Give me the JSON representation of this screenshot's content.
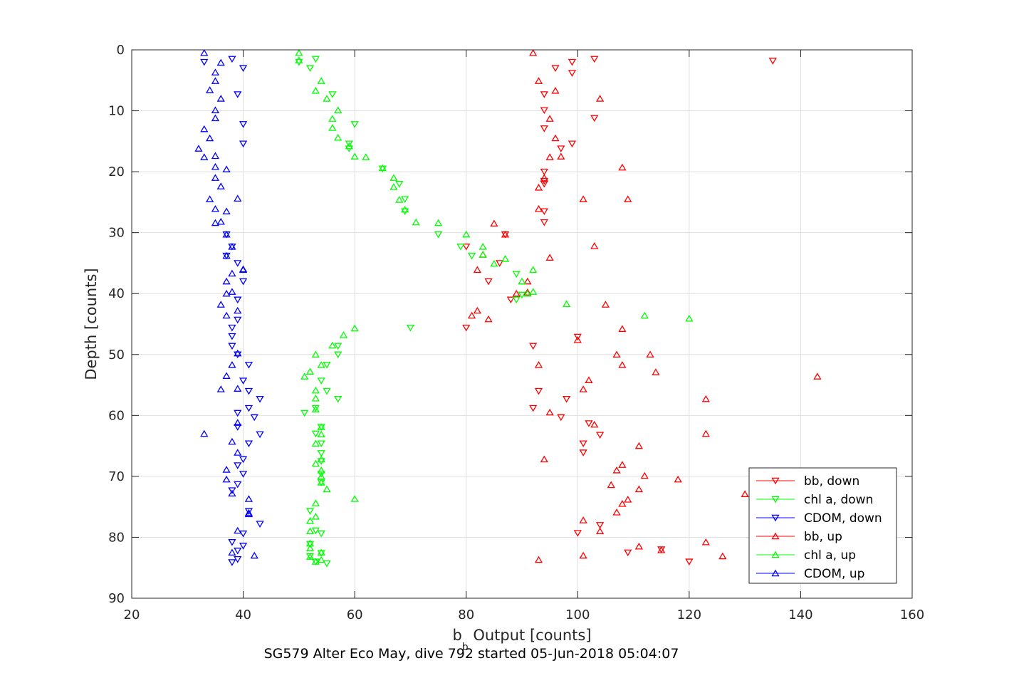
{
  "chart_data": {
    "type": "scatter",
    "title": "",
    "caption": "SG579 Alter Eco May, dive 792 started 05-Jun-2018 05:04:07",
    "xlabel": "b",
    "xlabel_sub": "b",
    "xlabel_rest": " Output [counts]",
    "ylabel": "Depth [counts]",
    "xlim": [
      20,
      160
    ],
    "ylim": [
      0,
      90
    ],
    "y_reversed": true,
    "grid": true,
    "legend_position": "bottom-right",
    "x_ticks": [
      20,
      40,
      60,
      80,
      100,
      120,
      140,
      160
    ],
    "y_ticks": [
      0,
      10,
      20,
      30,
      40,
      50,
      60,
      70,
      80,
      90
    ],
    "series": [
      {
        "name": "bb, down",
        "color": "#ff0000",
        "marker": "triangle-down",
        "points": [
          [
            103,
            1.5
          ],
          [
            135,
            1.8
          ],
          [
            99,
            2
          ],
          [
            96,
            3
          ],
          [
            99,
            3.8
          ],
          [
            94,
            7.3
          ],
          [
            94,
            9.9
          ],
          [
            103,
            11.2
          ],
          [
            94,
            12.9
          ],
          [
            99,
            15.4
          ],
          [
            97,
            16.2
          ],
          [
            94,
            20
          ],
          [
            94,
            21.5
          ],
          [
            94,
            22
          ],
          [
            94,
            26.5
          ],
          [
            94,
            28.3
          ],
          [
            87,
            30.3
          ],
          [
            80,
            32.3
          ],
          [
            86,
            35
          ],
          [
            84,
            38
          ],
          [
            88,
            41
          ],
          [
            80,
            45.6
          ],
          [
            100,
            47.1
          ],
          [
            92,
            48.6
          ],
          [
            93,
            56
          ],
          [
            98,
            57.3
          ],
          [
            92,
            58.8
          ],
          [
            97,
            60.3
          ],
          [
            102,
            61.3
          ],
          [
            104,
            63.2
          ],
          [
            101,
            64.6
          ],
          [
            101,
            66.1
          ],
          [
            100,
            79.3
          ],
          [
            104,
            78
          ],
          [
            109,
            82.5
          ],
          [
            115,
            82
          ],
          [
            120,
            84
          ]
        ]
      },
      {
        "name": "chl a, down",
        "color": "#00ff00",
        "marker": "triangle-down",
        "points": [
          [
            53,
            1.5
          ],
          [
            50,
            2
          ],
          [
            52,
            3
          ],
          [
            56,
            7.3
          ],
          [
            60,
            12.2
          ],
          [
            59,
            15.4
          ],
          [
            59,
            16.2
          ],
          [
            65,
            19.5
          ],
          [
            68,
            22
          ],
          [
            69,
            24.5
          ],
          [
            69,
            26.5
          ],
          [
            75,
            30.3
          ],
          [
            79,
            32.3
          ],
          [
            81,
            33.8
          ],
          [
            89,
            36.8
          ],
          [
            90,
            40.2
          ],
          [
            89,
            41
          ],
          [
            70,
            45.6
          ],
          [
            57,
            48.6
          ],
          [
            57,
            50
          ],
          [
            55,
            51.7
          ],
          [
            54,
            54.3
          ],
          [
            55,
            56
          ],
          [
            57,
            57.3
          ],
          [
            53,
            58.8
          ],
          [
            51,
            59.6
          ],
          [
            54,
            61.9
          ],
          [
            53,
            63
          ],
          [
            54,
            64.6
          ],
          [
            54,
            66.2
          ],
          [
            54,
            67.5
          ],
          [
            54,
            69.6
          ],
          [
            54,
            71
          ],
          [
            52,
            75.7
          ],
          [
            53,
            78.9
          ],
          [
            54,
            79.4
          ],
          [
            52,
            81.1
          ],
          [
            54,
            82.6
          ],
          [
            52,
            83.1
          ],
          [
            53,
            84
          ],
          [
            55,
            84.3
          ]
        ]
      },
      {
        "name": "CDOM, down",
        "color": "#0000ff",
        "marker": "triangle-down",
        "points": [
          [
            33,
            2
          ],
          [
            38,
            1.5
          ],
          [
            40,
            3
          ],
          [
            39,
            7.3
          ],
          [
            40,
            12.2
          ],
          [
            40,
            15.4
          ],
          [
            37,
            30.3
          ],
          [
            38,
            32.3
          ],
          [
            37,
            33.8
          ],
          [
            39,
            35
          ],
          [
            40,
            38
          ],
          [
            39,
            41
          ],
          [
            39,
            44.3
          ],
          [
            38,
            45.6
          ],
          [
            38,
            47
          ],
          [
            38,
            48.6
          ],
          [
            39,
            50
          ],
          [
            41,
            51.7
          ],
          [
            40,
            54.3
          ],
          [
            41,
            56
          ],
          [
            43,
            57.3
          ],
          [
            41,
            58.8
          ],
          [
            39,
            59.6
          ],
          [
            42,
            60.3
          ],
          [
            39,
            61.9
          ],
          [
            43,
            63.1
          ],
          [
            41,
            64.6
          ],
          [
            40,
            67.2
          ],
          [
            39,
            68.2
          ],
          [
            40,
            69.6
          ],
          [
            39,
            71.3
          ],
          [
            38,
            72.3
          ],
          [
            41,
            75.7
          ],
          [
            43,
            77.8
          ],
          [
            40,
            79.4
          ],
          [
            38,
            80.8
          ],
          [
            40,
            81.4
          ],
          [
            39,
            82.2
          ],
          [
            39,
            83.6
          ],
          [
            38,
            84.1
          ]
        ]
      },
      {
        "name": "bb, up",
        "color": "#ff0000",
        "marker": "triangle-up",
        "points": [
          [
            92,
            0.5
          ],
          [
            93,
            5.1
          ],
          [
            96,
            6.7
          ],
          [
            104,
            8
          ],
          [
            95,
            11.3
          ],
          [
            96,
            14.5
          ],
          [
            95,
            17.6
          ],
          [
            97,
            17.5
          ],
          [
            108,
            19.3
          ],
          [
            94,
            21
          ],
          [
            93,
            22.6
          ],
          [
            101,
            24.5
          ],
          [
            109,
            24.5
          ],
          [
            93,
            26.1
          ],
          [
            85,
            28.5
          ],
          [
            87,
            30.3
          ],
          [
            103,
            32.2
          ],
          [
            83,
            33.6
          ],
          [
            95,
            34.1
          ],
          [
            82,
            36.1
          ],
          [
            91,
            38
          ],
          [
            89,
            40
          ],
          [
            91,
            39.8
          ],
          [
            105,
            41.8
          ],
          [
            82,
            42.8
          ],
          [
            81,
            43.6
          ],
          [
            84,
            44.2
          ],
          [
            108,
            45.8
          ],
          [
            100,
            47.6
          ],
          [
            107,
            50
          ],
          [
            113,
            50
          ],
          [
            108,
            51.7
          ],
          [
            93,
            51.7
          ],
          [
            114,
            52.9
          ],
          [
            143,
            53.6
          ],
          [
            102,
            54.2
          ],
          [
            101,
            55.7
          ],
          [
            123,
            57.3
          ],
          [
            95,
            59.5
          ],
          [
            103,
            61.5
          ],
          [
            123,
            63
          ],
          [
            111,
            65
          ],
          [
            94,
            67.2
          ],
          [
            108,
            68.1
          ],
          [
            107,
            69
          ],
          [
            112,
            69.9
          ],
          [
            118,
            70.5
          ],
          [
            106,
            71.4
          ],
          [
            111,
            72.1
          ],
          [
            130,
            72.9
          ],
          [
            109,
            73.8
          ],
          [
            108,
            74.5
          ],
          [
            107,
            75.9
          ],
          [
            101,
            77.2
          ],
          [
            104,
            79
          ],
          [
            123,
            80.8
          ],
          [
            111,
            81.5
          ],
          [
            115,
            82.1
          ],
          [
            126,
            83.1
          ],
          [
            101,
            83
          ],
          [
            93,
            83.7
          ]
        ]
      },
      {
        "name": "chl a, up",
        "color": "#00ff00",
        "marker": "triangle-up",
        "points": [
          [
            50,
            0.5
          ],
          [
            50,
            1.7
          ],
          [
            54,
            5.1
          ],
          [
            53,
            6.7
          ],
          [
            55,
            8
          ],
          [
            57,
            9.9
          ],
          [
            56,
            11.3
          ],
          [
            56,
            12.8
          ],
          [
            57,
            14.4
          ],
          [
            59,
            15.8
          ],
          [
            60,
            17.5
          ],
          [
            62,
            17.6
          ],
          [
            65,
            19.4
          ],
          [
            67,
            21
          ],
          [
            67,
            22.5
          ],
          [
            68,
            24.6
          ],
          [
            69,
            26.2
          ],
          [
            71,
            28.3
          ],
          [
            75,
            28.4
          ],
          [
            80,
            30.3
          ],
          [
            83,
            32.3
          ],
          [
            85,
            35.1
          ],
          [
            87,
            34.3
          ],
          [
            92,
            36.1
          ],
          [
            83,
            33.6
          ],
          [
            90,
            38
          ],
          [
            91,
            40
          ],
          [
            92,
            39.7
          ],
          [
            98,
            41.7
          ],
          [
            112,
            43.6
          ],
          [
            120,
            44.1
          ],
          [
            60,
            45.7
          ],
          [
            58,
            46.8
          ],
          [
            56,
            48.5
          ],
          [
            53,
            50
          ],
          [
            54,
            51.7
          ],
          [
            52,
            52.8
          ],
          [
            51,
            53.6
          ],
          [
            53,
            55.9
          ],
          [
            53,
            57.2
          ],
          [
            53,
            59
          ],
          [
            54,
            61.9
          ],
          [
            54,
            63.1
          ],
          [
            53,
            64.6
          ],
          [
            54,
            67.2
          ],
          [
            53,
            67.9
          ],
          [
            54,
            69
          ],
          [
            54,
            70
          ],
          [
            54,
            71
          ],
          [
            55,
            72.1
          ],
          [
            60,
            73.7
          ],
          [
            53,
            74.4
          ],
          [
            53,
            76.6
          ],
          [
            52,
            77.3
          ],
          [
            52,
            79
          ],
          [
            52,
            81
          ],
          [
            52,
            81.8
          ],
          [
            54,
            82.5
          ],
          [
            52,
            83.2
          ],
          [
            53,
            84
          ],
          [
            54,
            83.7
          ]
        ]
      },
      {
        "name": "CDOM, up",
        "color": "#0000ff",
        "marker": "triangle-up",
        "points": [
          [
            33,
            0.5
          ],
          [
            36,
            2.1
          ],
          [
            35,
            3.7
          ],
          [
            35,
            5.1
          ],
          [
            34,
            6.6
          ],
          [
            36,
            8
          ],
          [
            35,
            9.9
          ],
          [
            35,
            11.2
          ],
          [
            33,
            13
          ],
          [
            34,
            14.5
          ],
          [
            32,
            16.2
          ],
          [
            35,
            17.4
          ],
          [
            33,
            17.6
          ],
          [
            35,
            19.2
          ],
          [
            37,
            19.6
          ],
          [
            35,
            21
          ],
          [
            36,
            22.4
          ],
          [
            34,
            24.5
          ],
          [
            39,
            24.4
          ],
          [
            35,
            26.1
          ],
          [
            37,
            26.5
          ],
          [
            35,
            28.4
          ],
          [
            36,
            28.2
          ],
          [
            37,
            30.3
          ],
          [
            37,
            33.8
          ],
          [
            38,
            32.3
          ],
          [
            40,
            36.1
          ],
          [
            38,
            36.7
          ],
          [
            37,
            38
          ],
          [
            37,
            40
          ],
          [
            38,
            39.7
          ],
          [
            36,
            41.8
          ],
          [
            37,
            43.6
          ],
          [
            39,
            42.8
          ],
          [
            40,
            36
          ],
          [
            36,
            55.7
          ],
          [
            39,
            55.6
          ],
          [
            37,
            53.5
          ],
          [
            38,
            51.7
          ],
          [
            39,
            49.8
          ],
          [
            39,
            61.2
          ],
          [
            33,
            63
          ],
          [
            38,
            64.3
          ],
          [
            39,
            66.1
          ],
          [
            37,
            68.9
          ],
          [
            37,
            70.5
          ],
          [
            41,
            73.7
          ],
          [
            38,
            72.8
          ],
          [
            41,
            76.2
          ],
          [
            41,
            76
          ],
          [
            39,
            78.9
          ],
          [
            42,
            83
          ],
          [
            38,
            82.5
          ]
        ]
      }
    ]
  }
}
